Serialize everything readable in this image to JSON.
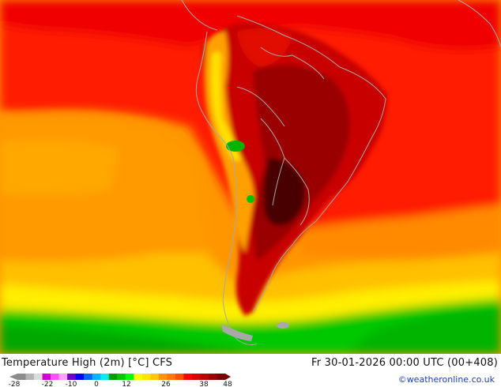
{
  "title": "Temperature High (2m) [°C] CFS",
  "valid_time": "Fr 30-01-2026 00:00 UTC (00+408)",
  "credit": "©weatheronline.co.uk",
  "legend": {
    "tick_labels": [
      "-28",
      "-22",
      "-10",
      "0",
      "12",
      "26",
      "38",
      "48"
    ],
    "colors": [
      "#8c8c8c",
      "#b4b4b4",
      "#dcdcdc",
      "#d200d2",
      "#ff50ff",
      "#ffa0ff",
      "#6e00c8",
      "#0000ff",
      "#0064ff",
      "#00b4ff",
      "#00eeee",
      "#00a000",
      "#00c800",
      "#00ff00",
      "#ffff00",
      "#ffe600",
      "#ffc800",
      "#ff9600",
      "#ff7800",
      "#ff5000",
      "#ff0000",
      "#dc0000",
      "#be0000",
      "#a00000",
      "#780000"
    ]
  },
  "colors": {
    "cold_green": "#00c800",
    "mild_yellow": "#ffe600",
    "warm_orange": "#ff9600",
    "hot_red": "#ff1e00",
    "very_hot": "#a00000",
    "extreme": "#4a0000",
    "coastline": "#a8a8a8"
  }
}
